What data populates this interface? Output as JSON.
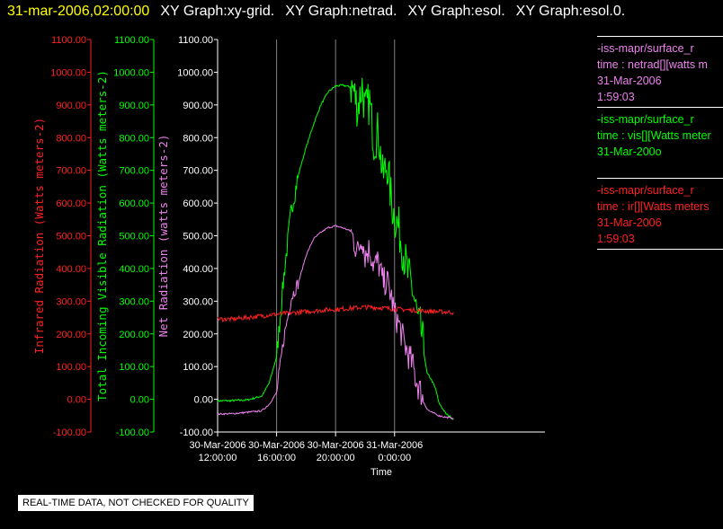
{
  "header": {
    "timestamp": "31-mar-2006,02:00:00",
    "graph_titles": [
      "XY Graph:xy-grid.",
      "XY Graph:netrad.",
      "XY Graph:esol.",
      "XY Graph:esol.0."
    ]
  },
  "legend": [
    {
      "lines": [
        "-iss-mapr/surface_r",
        "time : netrad[][watts m",
        "31-Mar-2006",
        "1:59:03"
      ],
      "color": "#ee82ee"
    },
    {
      "lines": [
        "-iss-mapr/surface_r",
        "time : vis[][Watts meter",
        "31-Mar-200o"
      ],
      "color": "#00ff00"
    },
    {
      "lines": [
        "-iss-mapr/surface_r",
        "time : ir[][Watts meters",
        "31-Mar-2006",
        "1:59:03"
      ],
      "color": "#ff2020"
    }
  ],
  "qc_notice": "REAL-TIME DATA, NOT CHECKED FOR QUALITY",
  "chart_data": {
    "type": "line",
    "xlabel": "Time",
    "x_ticks": [
      {
        "date": "30-Mar-2006",
        "time": "12:00:00"
      },
      {
        "date": "30-Mar-2006",
        "time": "16:00:00"
      },
      {
        "date": "30-Mar-2006",
        "time": "20:00:00"
      },
      {
        "date": "31-Mar-2006",
        "time": "0:00:00"
      }
    ],
    "x_unit": "hours since 30-Mar-2006 12:00",
    "xlim": [
      12,
      34.2
    ],
    "vertical_grid": [
      16,
      20,
      24
    ],
    "y_axes": [
      {
        "label": "Infrared Radiation (Watts meters-2)",
        "color": "#ff2020",
        "ylim": [
          -100,
          1100
        ]
      },
      {
        "label": "Total Incoming Visible Radiation (Watts meters-2)",
        "color": "#00ff00",
        "ylim": [
          -100,
          1100
        ]
      },
      {
        "label": "Net Radiation (watts meters-2)",
        "color": "#ee82ee",
        "ylim": [
          -100,
          1100
        ]
      }
    ],
    "y_ticks": [
      "-100.00",
      "0.00",
      "100.00",
      "200.00",
      "300.00",
      "400.00",
      "500.00",
      "600.00",
      "700.00",
      "800.00",
      "900.00",
      "1000.00",
      "1100.00"
    ],
    "series": [
      {
        "name": "vis",
        "color": "#00ff00",
        "x": [
          12,
          13,
          14,
          15,
          15.5,
          16,
          16.5,
          17,
          17.5,
          18,
          18.5,
          19,
          19.5,
          20,
          20.5,
          21,
          21.2,
          21.5,
          21.8,
          22,
          22.3,
          22.6,
          22.9,
          23.2,
          23.5,
          23.8,
          24,
          24.3,
          24.6,
          24.9,
          25.2,
          25.4,
          25.6,
          25.8,
          26,
          26.2,
          26.5,
          26.8,
          27,
          27.5,
          28
        ],
        "y": [
          -5,
          -4,
          -2,
          10,
          50,
          130,
          380,
          580,
          690,
          770,
          840,
          900,
          940,
          958,
          960,
          955,
          950,
          890,
          960,
          880,
          910,
          790,
          820,
          680,
          720,
          600,
          560,
          520,
          450,
          380,
          340,
          290,
          230,
          210,
          140,
          80,
          60,
          30,
          -10,
          -45,
          -60
        ]
      },
      {
        "name": "netrad",
        "color": "#ee82ee",
        "x": [
          12,
          13,
          14,
          15,
          15.5,
          16,
          16.5,
          17,
          17.5,
          18,
          18.5,
          19,
          19.5,
          20,
          20.5,
          21,
          21.2,
          21.5,
          21.8,
          22,
          22.3,
          22.6,
          22.9,
          23.2,
          23.5,
          23.8,
          24,
          24.3,
          24.6,
          24.9,
          25.2,
          25.4,
          25.6,
          25.8,
          26,
          26.2,
          26.5,
          26.8,
          27,
          27.5,
          28
        ],
        "y": [
          -45,
          -44,
          -40,
          -35,
          -15,
          20,
          190,
          310,
          360,
          440,
          490,
          510,
          525,
          530,
          524,
          515,
          490,
          450,
          500,
          440,
          460,
          410,
          420,
          360,
          360,
          310,
          260,
          230,
          180,
          140,
          110,
          70,
          40,
          20,
          -10,
          -30,
          -40,
          -45,
          -50,
          -55,
          -58
        ]
      },
      {
        "name": "ir",
        "color": "#ff2020",
        "x": [
          12,
          13,
          14,
          15,
          15.5,
          16,
          16.5,
          17,
          17.5,
          18,
          18.5,
          19,
          19.5,
          20,
          20.5,
          21,
          21.5,
          22,
          22.5,
          23,
          23.5,
          24,
          24.5,
          25,
          25.5,
          26,
          26.5,
          27,
          27.5,
          28
        ],
        "y": [
          245,
          245,
          250,
          255,
          258,
          260,
          262,
          264,
          266,
          268,
          270,
          272,
          274,
          275,
          276,
          278,
          280,
          282,
          281,
          280,
          278,
          276,
          275,
          273,
          272,
          270,
          269,
          268,
          267,
          266
        ]
      }
    ]
  }
}
